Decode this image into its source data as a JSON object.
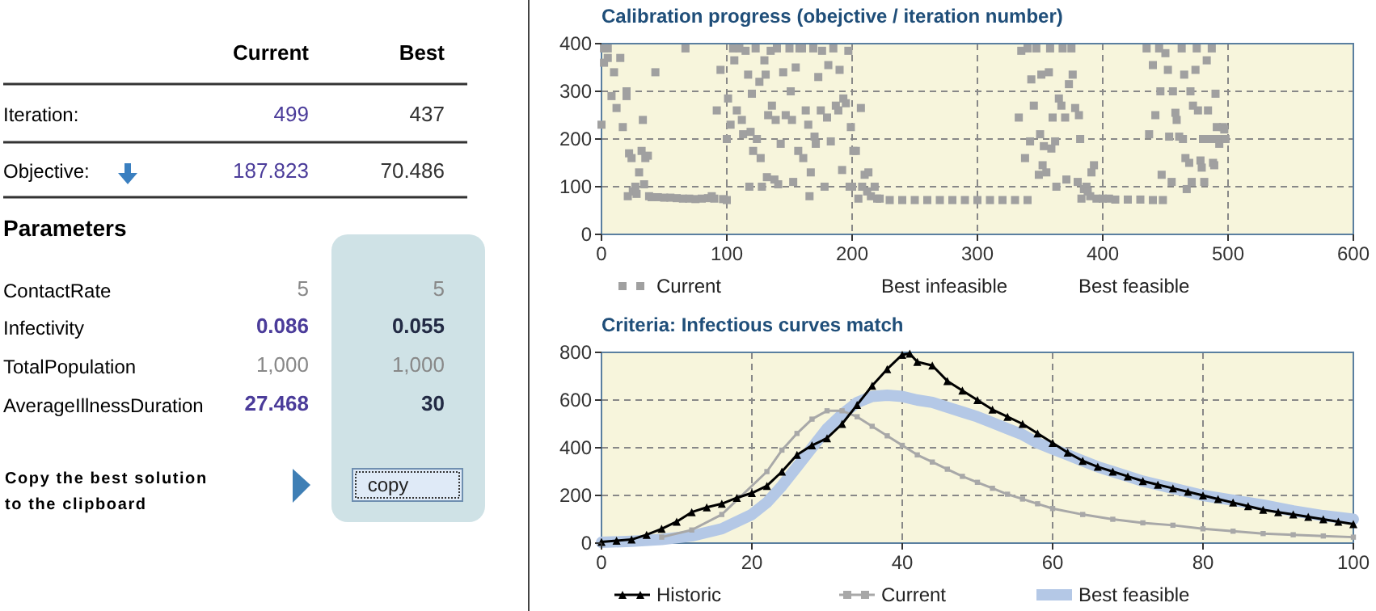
{
  "chart_data": [
    {
      "type": "other",
      "annotations": [
        "Current",
        "Best",
        "Iteration:",
        "499",
        "437",
        "Objective:",
        "187.823",
        "70.486",
        "Parameters",
        "ContactRate",
        "5",
        "5",
        "Infectivity",
        "0.086",
        "0.055",
        "TotalPopulation",
        "1,000",
        "1,000",
        "AverageIllnessDuration",
        "27.468",
        "30",
        "Copy the best solution",
        "to the clipboard",
        "copy"
      ]
    },
    {
      "type": "scatter",
      "title": "Calibration progress (obejctive / iteration number)",
      "xlim": [
        0,
        600
      ],
      "xticks": [
        0,
        100,
        200,
        300,
        400,
        500,
        600
      ],
      "ylim": [
        0,
        400
      ],
      "yticks": [
        0,
        100,
        200,
        300,
        400
      ],
      "grid": true,
      "legend": "bottom",
      "marker": "square",
      "series": [
        {
          "name": "Current",
          "color": "#a0a0a0",
          "x": [
            0,
            2,
            2,
            5,
            5,
            8,
            10,
            12,
            15,
            17,
            20,
            20,
            21,
            22,
            24,
            25,
            27,
            28,
            30,
            32,
            33,
            34,
            35,
            37,
            38,
            40,
            43,
            45,
            50,
            55,
            60,
            65,
            67,
            70,
            75,
            80,
            85,
            88,
            90,
            92,
            95,
            97,
            100,
            100,
            101,
            103,
            105,
            106,
            108,
            110,
            112,
            113,
            115,
            117,
            118,
            119,
            120,
            121,
            123,
            124,
            126,
            127,
            128,
            130,
            131,
            132,
            133,
            135,
            136,
            138,
            139,
            140,
            141,
            143,
            145,
            147,
            150,
            151,
            152,
            153,
            155,
            157,
            158,
            160,
            161,
            163,
            165,
            166,
            167,
            169,
            170,
            171,
            173,
            175,
            176,
            178,
            180,
            181,
            183,
            185,
            187,
            189,
            190,
            192,
            193,
            195,
            197,
            198,
            199,
            200,
            201,
            203,
            205,
            207,
            208,
            210,
            212,
            213,
            215,
            218,
            220,
            222,
            230,
            240,
            250,
            260,
            270,
            280,
            290,
            300,
            310,
            320,
            330,
            340,
            333,
            335,
            338,
            340,
            342,
            343,
            345,
            347,
            349,
            350,
            351,
            352,
            353,
            355,
            357,
            358,
            359,
            360,
            362,
            363,
            365,
            367,
            368,
            370,
            371,
            373,
            375,
            376,
            378,
            380,
            381,
            382,
            383,
            385,
            387,
            388,
            390,
            391,
            393,
            395,
            400,
            405,
            410,
            420,
            430,
            440,
            448,
            435,
            437,
            440,
            442,
            445,
            446,
            447,
            450,
            452,
            453,
            455,
            456,
            458,
            459,
            461,
            463,
            464,
            465,
            466,
            467,
            469,
            470,
            471,
            472,
            474,
            475,
            476,
            478,
            479,
            480,
            481,
            483,
            484,
            486,
            487,
            488,
            489,
            490,
            491,
            492,
            493,
            496,
            497,
            498
          ],
          "values": [
            230,
            390,
            360,
            370,
            390,
            290,
            340,
            265,
            370,
            225,
            290,
            300,
            80,
            170,
            160,
            90,
            100,
            85,
            130,
            175,
            240,
            105,
            160,
            165,
            80,
            78,
            340,
            78,
            77,
            77,
            76,
            75,
            390,
            75,
            74,
            75,
            76,
            80,
            75,
            260,
            345,
            74,
            72,
            200,
            285,
            230,
            390,
            365,
            260,
            390,
            240,
            210,
            385,
            335,
            100,
            215,
            295,
            175,
            390,
            200,
            320,
            160,
            100,
            365,
            335,
            120,
            250,
            385,
            270,
            115,
            240,
            390,
            105,
            190,
            340,
            250,
            390,
            300,
            240,
            110,
            350,
            175,
            390,
            390,
            160,
            260,
            230,
            80,
            130,
            390,
            205,
            190,
            330,
            260,
            385,
            100,
            245,
            355,
            195,
            390,
            270,
            260,
            345,
            135,
            285,
            275,
            385,
            100,
            225,
            100,
            175,
            175,
            75,
            265,
            100,
            125,
            90,
            130,
            80,
            100,
            75,
            75,
            72,
            72,
            72,
            72,
            72,
            72,
            72,
            72,
            72,
            72,
            72,
            72,
            245,
            385,
            160,
            390,
            195,
            325,
            270,
            390,
            125,
            210,
            335,
            145,
            185,
            130,
            340,
            390,
            180,
            245,
            195,
            100,
            285,
            270,
            390,
            245,
            115,
            315,
            390,
            335,
            265,
            110,
            250,
            200,
            75,
            95,
            100,
            90,
            80,
            130,
            145,
            75,
            75,
            75,
            73,
            73,
            73,
            72,
            72,
            390,
            210,
            355,
            250,
            390,
            300,
            125,
            380,
            345,
            205,
            110,
            300,
            255,
            240,
            205,
            390,
            200,
            335,
            160,
            95,
            150,
            300,
            110,
            270,
            345,
            390,
            260,
            155,
            140,
            200,
            110,
            365,
            260,
            200,
            390,
            150,
            145,
            295,
            225,
            200,
            190,
            225,
            220,
            200
          ]
        },
        {
          "name": "Best infeasible"
        },
        {
          "name": "Best feasible"
        }
      ]
    },
    {
      "type": "line",
      "title": "Criteria: Infectious curves match",
      "xlim": [
        0,
        100
      ],
      "xticks": [
        0,
        20,
        40,
        60,
        80,
        100
      ],
      "ylim": [
        0,
        800
      ],
      "yticks": [
        0,
        200,
        400,
        600,
        800
      ],
      "grid": true,
      "legend": "bottom",
      "series": [
        {
          "name": "Historic",
          "color": "#000000",
          "marker": "triangle",
          "x": [
            0,
            2,
            4,
            6,
            8,
            10,
            12,
            14,
            16,
            18,
            20,
            22,
            24,
            26,
            28,
            30,
            32,
            34,
            36,
            38,
            40,
            41,
            42,
            44,
            46,
            48,
            50,
            52,
            54,
            56,
            58,
            60,
            62,
            64,
            66,
            68,
            70,
            72,
            74,
            76,
            78,
            80,
            82,
            84,
            86,
            88,
            90,
            92,
            94,
            96,
            98,
            100
          ],
          "values": [
            5,
            10,
            15,
            35,
            60,
            90,
            130,
            150,
            165,
            190,
            210,
            240,
            300,
            370,
            410,
            440,
            500,
            580,
            660,
            730,
            790,
            795,
            760,
            745,
            680,
            640,
            600,
            560,
            530,
            500,
            460,
            420,
            380,
            345,
            320,
            300,
            280,
            260,
            245,
            230,
            215,
            200,
            185,
            170,
            155,
            140,
            130,
            120,
            110,
            100,
            90,
            80
          ]
        },
        {
          "name": "Current",
          "color": "#a8a8a8",
          "marker": "square",
          "x": [
            8,
            12,
            16,
            22,
            24,
            26,
            28,
            30,
            32,
            34,
            36,
            38,
            40,
            42,
            44,
            46,
            48,
            50,
            52,
            54,
            56,
            58,
            60,
            64,
            68,
            72,
            76,
            80,
            84,
            88,
            92,
            96,
            100
          ],
          "values": [
            25,
            55,
            120,
            300,
            390,
            460,
            520,
            555,
            555,
            530,
            490,
            450,
            410,
            370,
            340,
            310,
            280,
            255,
            230,
            205,
            185,
            165,
            145,
            120,
            100,
            85,
            75,
            60,
            50,
            40,
            35,
            30,
            25
          ]
        },
        {
          "name": "Best feasible",
          "color": "#b4c8e6",
          "marker": "none",
          "x": [
            0,
            4,
            8,
            12,
            16,
            20,
            22,
            24,
            26,
            28,
            30,
            32,
            34,
            36,
            38,
            40,
            42,
            44,
            46,
            48,
            50,
            52,
            54,
            56,
            58,
            60,
            62,
            64,
            66,
            68,
            70,
            72,
            74,
            76,
            78,
            80,
            84,
            88,
            92,
            96,
            100
          ],
          "values": [
            3,
            8,
            15,
            30,
            60,
            120,
            170,
            240,
            320,
            400,
            480,
            540,
            590,
            615,
            620,
            615,
            600,
            590,
            570,
            550,
            530,
            505,
            480,
            455,
            420,
            395,
            370,
            345,
            320,
            300,
            280,
            260,
            245,
            230,
            215,
            200,
            180,
            160,
            135,
            115,
            100
          ]
        }
      ]
    }
  ]
}
